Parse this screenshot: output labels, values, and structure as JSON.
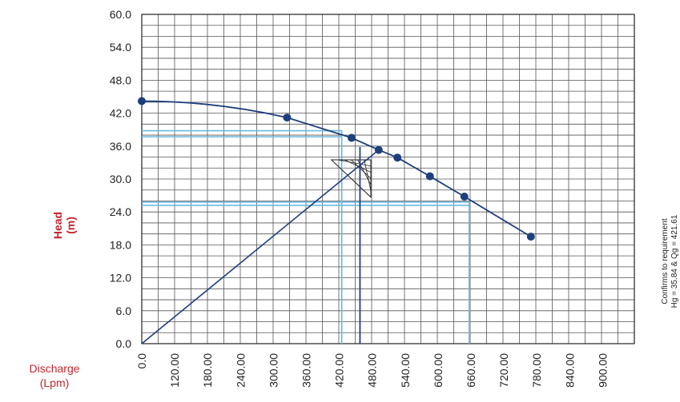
{
  "chart_data": {
    "type": "line",
    "ylabel": [
      "Head",
      "(m)"
    ],
    "xlabel": [
      "Discharge",
      "(Lpm)"
    ],
    "note": [
      "Confirms to requirement",
      "Hg = 35.84 & Qg = 421.61"
    ],
    "y_ticks": [
      "0.0",
      "6.0",
      "12.0",
      "18.0",
      "24.0",
      "30.0",
      "36.0",
      "42.0",
      "48.0",
      "54.0",
      "60.0"
    ],
    "x_ticks": [
      "0.0",
      "120.00",
      "180.00",
      "240.00",
      "300.00",
      "360.00",
      "420.00",
      "480.00",
      "540.00",
      "600.00",
      "660.00",
      "720.00",
      "780.00",
      "840.00",
      "900.00"
    ],
    "xlim": [
      0,
      1000
    ],
    "ylim": [
      0,
      60
    ],
    "grid": true,
    "series": [
      {
        "values": [
          {
            "x": 0,
            "y": 44.2
          },
          {
            "x": 295,
            "y": 41.2
          },
          {
            "x": 426,
            "y": 37.5
          },
          {
            "x": 481,
            "y": 35.3
          },
          {
            "x": 519,
            "y": 33.9
          },
          {
            "x": 585,
            "y": 30.5
          },
          {
            "x": 655,
            "y": 26.8
          },
          {
            "x": 790,
            "y": 19.5
          }
        ],
        "color": "#1e3f7d"
      }
    ],
    "system_curve": {
      "from": {
        "x": 0,
        "y": 0
      },
      "to": {
        "x": 481,
        "y": 35.3
      },
      "color": "#1e3f7d"
    },
    "duty_point": {
      "x": 443,
      "y": 35.84
    },
    "tolerance_triangle": {
      "top_left": {
        "x": 385,
        "y": 33.5
      },
      "top_right": {
        "x": 465,
        "y": 33.5
      },
      "bottom": {
        "x": 465,
        "y": 26.7
      }
    },
    "guides": {
      "color": "#6bb8e0",
      "lines": [
        {
          "x": 406,
          "y": 38.8
        },
        {
          "x": 406,
          "y": 37.7
        },
        {
          "x": 665,
          "y": 25.8
        },
        {
          "x": 665,
          "y": 25.2
        }
      ]
    }
  }
}
